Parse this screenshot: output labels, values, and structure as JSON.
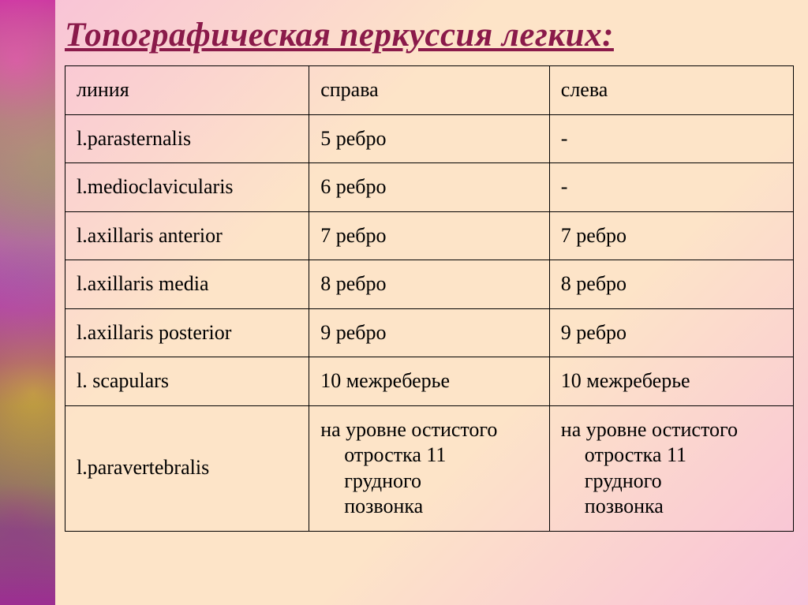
{
  "title": "Топографическая перкуссия легких:",
  "table": {
    "header": {
      "col1": "линия",
      "col2": "справа",
      "col3": "слева"
    },
    "rows": [
      {
        "col1": "l.parasternalis",
        "col2": "5 ребро",
        "col3": "-"
      },
      {
        "col1": "l.medioclavicularis",
        "col2": "6 ребро",
        "col3": "-"
      },
      {
        "col1": "l.axillaris anterior",
        "col2": "7 ребро",
        "col3": "7 ребро"
      },
      {
        "col1": "l.axillaris media",
        "col2": "8 ребро",
        "col3": "8 ребро"
      },
      {
        "col1": "l.axillaris posterior",
        "col2": "9 ребро",
        "col3": "9 ребро"
      },
      {
        "col1": "l. scapulars",
        "col2": "10 межреберье",
        "col3": "10 межреберье"
      }
    ],
    "lastRow": {
      "col1": "l.paravertebralis",
      "col2_line1": "на уровне остистого",
      "col2_line2": "отростка 11",
      "col2_line3": "грудного",
      "col2_line4": "позвонка",
      "col3_line1": "на уровне остистого",
      "col3_line2": "отростка 11",
      "col3_line3": "грудного",
      "col3_line4": "позвонка"
    }
  },
  "colors": {
    "title": "#8a1a4a",
    "border": "#000000"
  }
}
